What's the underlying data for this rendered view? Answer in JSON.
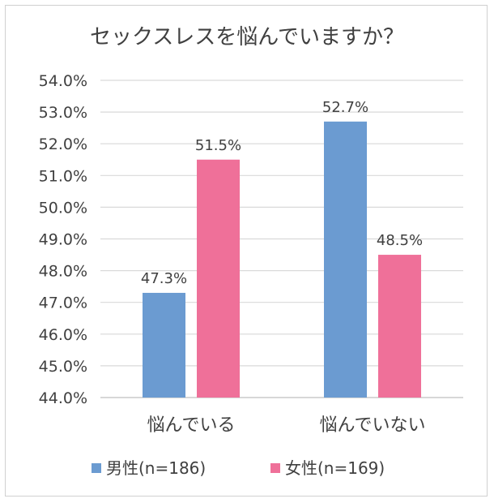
{
  "chart_data": {
    "type": "bar",
    "title": "セックスレスを悩んでいますか？",
    "categories": [
      "悩んでいる",
      "悩んでいない"
    ],
    "series": [
      {
        "name": "男性(n=186)",
        "values": [
          47.3,
          52.7
        ],
        "labels": [
          "47.3%",
          "52.7%"
        ],
        "color": "#6b9bd1"
      },
      {
        "name": "女性(n=169)",
        "values": [
          51.5,
          48.5
        ],
        "labels": [
          "51.5%",
          "48.5%"
        ],
        "color": "#ef7099"
      }
    ],
    "ylim": [
      44.0,
      54.0
    ],
    "yticks": [
      "44.0%",
      "45.0%",
      "46.0%",
      "47.0%",
      "48.0%",
      "49.0%",
      "50.0%",
      "51.0%",
      "52.0%",
      "53.0%",
      "54.0%"
    ],
    "grid": true,
    "legend": "bottom"
  }
}
